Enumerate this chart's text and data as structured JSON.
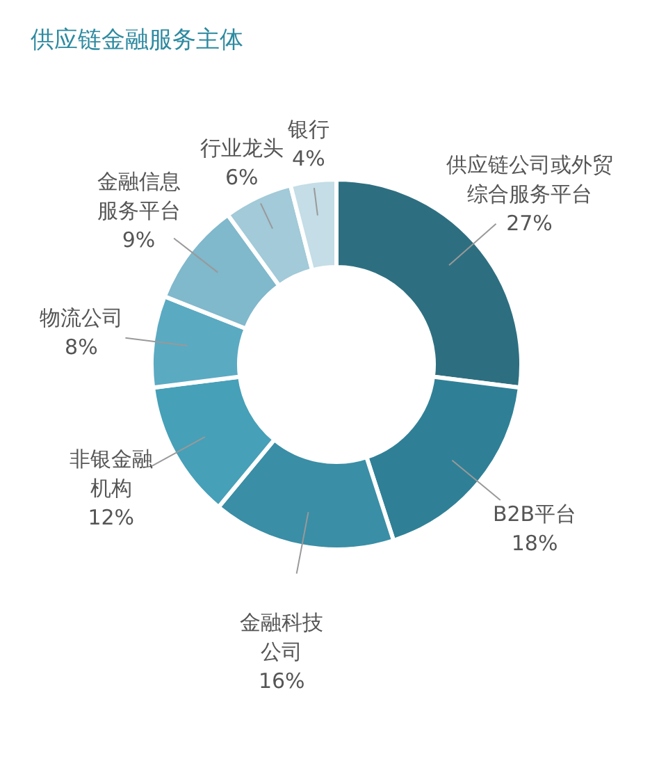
{
  "chart_data": {
    "type": "donut",
    "title": "供应链金融服务主体",
    "categories": [
      "供应链公司或外贸综合服务平台",
      "B2B平台",
      "金融科技公司",
      "非银金融机构",
      "物流公司",
      "金融信息服务平台",
      "行业龙头",
      "银行"
    ],
    "values": [
      27,
      18,
      16,
      12,
      8,
      9,
      6,
      4
    ],
    "colors": [
      "#2d6f80",
      "#2f8096",
      "#3a8ea6",
      "#46a0b8",
      "#5aaac2",
      "#80b8cc",
      "#a2cad8",
      "#c4dde6"
    ],
    "value_labels": [
      "27%",
      "18%",
      "16%",
      "12%",
      "8%",
      "9%",
      "6%",
      "4%"
    ]
  }
}
